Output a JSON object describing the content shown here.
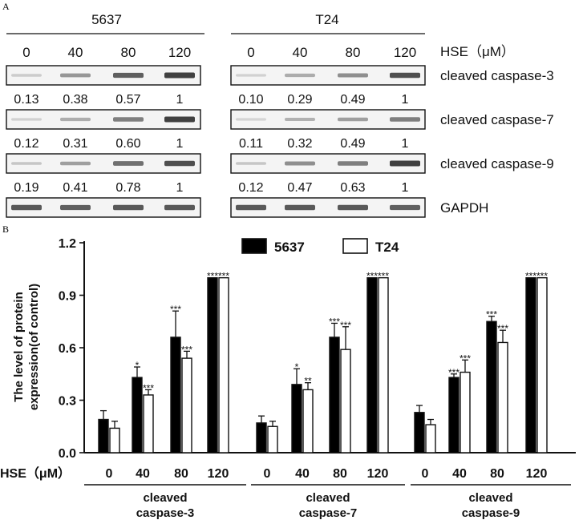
{
  "panel_a": {
    "label": "A",
    "cell_lines": [
      "5637",
      "T24"
    ],
    "concentrations": [
      "0",
      "40",
      "80",
      "120"
    ],
    "treatment_label": "HSE（μM）",
    "rows": [
      {
        "protein": "cleaved caspase-3",
        "ratios": [
          [
            "0.13",
            "0.38",
            "0.57",
            "1"
          ],
          [
            "0.10",
            "0.29",
            "0.49",
            "1"
          ]
        ],
        "intensity": [
          [
            0.1,
            0.45,
            0.8,
            1.0
          ],
          [
            0.08,
            0.32,
            0.5,
            0.9
          ]
        ]
      },
      {
        "protein": "cleaved caspase-7",
        "ratios": [
          [
            "0.12",
            "0.31",
            "0.60",
            "1"
          ],
          [
            "0.11",
            "0.32",
            "0.49",
            "1"
          ]
        ],
        "intensity": [
          [
            0.08,
            0.3,
            0.6,
            1.0
          ],
          [
            0.06,
            0.28,
            0.4,
            0.6
          ]
        ]
      },
      {
        "protein": "cleaved caspase-9",
        "ratios": [
          [
            "0.19",
            "0.41",
            "0.78",
            "1"
          ],
          [
            "0.12",
            "0.47",
            "0.63",
            "1"
          ]
        ],
        "intensity": [
          [
            0.15,
            0.4,
            0.7,
            0.9
          ],
          [
            0.15,
            0.5,
            0.6,
            1.0
          ]
        ]
      },
      {
        "protein": "GAPDH",
        "ratios": null,
        "intensity": [
          [
            0.85,
            0.8,
            0.85,
            0.85
          ],
          [
            0.85,
            0.85,
            0.85,
            0.8
          ]
        ]
      }
    ]
  },
  "chart_data": {
    "type": "bar",
    "panel_label": "B",
    "ylabel_line1": "The level of protein",
    "ylabel_line2": "expression(of control)",
    "ylim": [
      0,
      1.2
    ],
    "yticks": [
      "0.0",
      "0.3",
      "0.6",
      "0.9",
      "1.2"
    ],
    "ytick_values": [
      0,
      0.3,
      0.6,
      0.9,
      1.2
    ],
    "xlabel_prefix": "HSE（μM）",
    "concentrations": [
      "0",
      "40",
      "80",
      "120"
    ],
    "groups": [
      {
        "label_line1": "cleaved",
        "label_line2": "caspase-3"
      },
      {
        "label_line1": "cleaved",
        "label_line2": "caspase-7"
      },
      {
        "label_line1": "cleaved",
        "label_line2": "caspase-9"
      }
    ],
    "legend_position": "top",
    "series": [
      {
        "name": "5637",
        "color": "#000000",
        "values": [
          [
            0.19,
            0.43,
            0.66,
            1.0
          ],
          [
            0.17,
            0.39,
            0.66,
            1.0
          ],
          [
            0.23,
            0.43,
            0.75,
            1.0
          ]
        ],
        "errors": [
          [
            0.05,
            0.06,
            0.15,
            0.0
          ],
          [
            0.04,
            0.09,
            0.08,
            0.0
          ],
          [
            0.04,
            0.02,
            0.03,
            0.0
          ]
        ],
        "sig": [
          [
            "",
            "*",
            "***",
            "***"
          ],
          [
            "",
            "*",
            "***",
            "***"
          ],
          [
            "",
            "***",
            "***",
            "***"
          ]
        ]
      },
      {
        "name": "T24",
        "color": "#ffffff",
        "values": [
          [
            0.14,
            0.33,
            0.54,
            1.0
          ],
          [
            0.15,
            0.36,
            0.59,
            1.0
          ],
          [
            0.16,
            0.46,
            0.63,
            1.0
          ]
        ],
        "errors": [
          [
            0.04,
            0.03,
            0.04,
            0.0
          ],
          [
            0.03,
            0.04,
            0.13,
            0.0
          ],
          [
            0.03,
            0.07,
            0.07,
            0.0
          ]
        ],
        "sig": [
          [
            "",
            "***",
            "***",
            "***"
          ],
          [
            "",
            "**",
            "***",
            "***"
          ],
          [
            "",
            "***",
            "***",
            "***"
          ]
        ]
      }
    ]
  }
}
